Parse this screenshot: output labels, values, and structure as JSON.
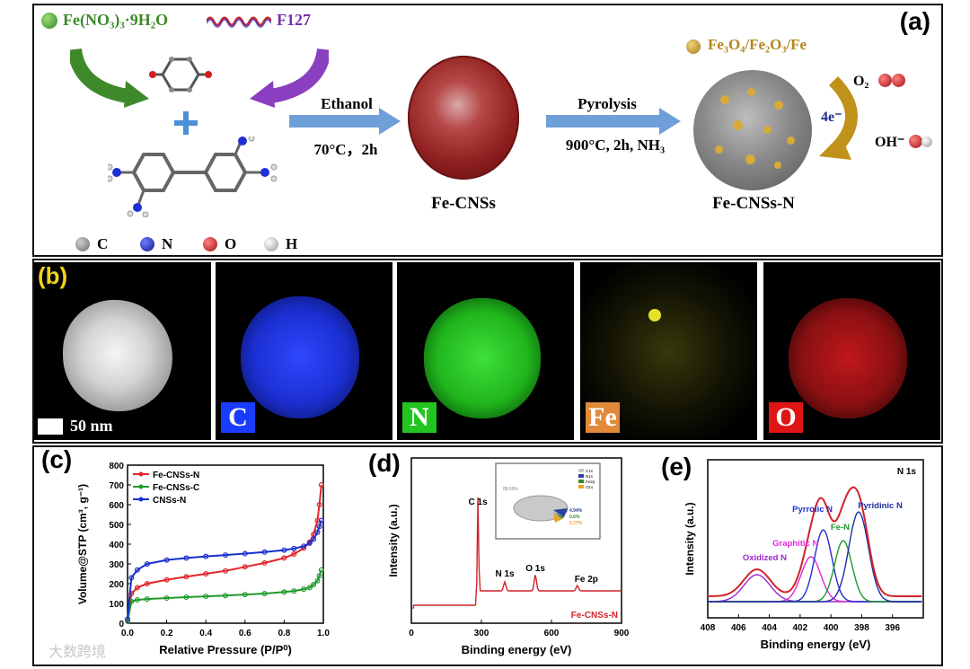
{
  "panel_a": {
    "label": "(a)",
    "reagent_fe": "Fe(NO₃)₃·9H₂O",
    "reagent_polymer": "F127",
    "step1_top": "Ethanol",
    "step1_bottom": "70°C，2h",
    "product1": "Fe-CNSs",
    "step2_top": "Pyrolysis",
    "step2_bottom": "900°C, 2h, NH₃",
    "product2": "Fe-CNSs-N",
    "particles_legend": "Fe₃O₄/Fe₂O₃/Fe",
    "reaction_in": "O₂",
    "reaction_e": "4e⁻",
    "reaction_out": "OH⁻",
    "atoms": [
      "C",
      "N",
      "O",
      "H"
    ],
    "colors": {
      "C": "#8a8a8a",
      "N": "#1f2fd6",
      "O": "#d11c1c",
      "H": "#e6e6e6",
      "sphere": "#9b2424",
      "arrow": "#6f9fd8"
    }
  },
  "panel_b": {
    "label": "(b)",
    "scale": "50 nm",
    "maps": [
      {
        "tag": "C",
        "color": "#1a3cff"
      },
      {
        "tag": "N",
        "color": "#22c41f"
      },
      {
        "tag": "Fe",
        "color": "#d5d21c"
      },
      {
        "tag": "O",
        "color": "#e01414"
      }
    ]
  },
  "panel_c": {
    "label": "(c)",
    "chart_data": {
      "type": "line",
      "xlabel": "Relative Pressure (P/P⁰)",
      "ylabel": "Volume@STP (cm³, g⁻¹)",
      "xlim": [
        0,
        1.0
      ],
      "ylim": [
        0,
        800
      ],
      "xticks": [
        "0.0",
        "0.2",
        "0.4",
        "0.6",
        "0.8",
        "1.0"
      ],
      "yticks": [
        "0",
        "100",
        "200",
        "300",
        "400",
        "500",
        "600",
        "700",
        "800"
      ],
      "x": [
        0.0,
        0.02,
        0.05,
        0.1,
        0.2,
        0.3,
        0.4,
        0.5,
        0.6,
        0.7,
        0.8,
        0.85,
        0.9,
        0.93,
        0.95,
        0.97,
        0.98,
        0.99
      ],
      "series": [
        {
          "name": "Fe-CNSs-N",
          "color": "#e0262a",
          "values": [
            20,
            150,
            180,
            200,
            220,
            235,
            250,
            265,
            285,
            305,
            330,
            350,
            380,
            410,
            450,
            520,
            600,
            700
          ]
        },
        {
          "name": "Fe-CNSs-C",
          "color": "#1f9a2a",
          "values": [
            10,
            110,
            118,
            122,
            127,
            132,
            136,
            140,
            145,
            150,
            158,
            163,
            172,
            180,
            195,
            215,
            240,
            270
          ]
        },
        {
          "name": "CNSs-N",
          "color": "#1a2fd0",
          "values": [
            20,
            230,
            270,
            300,
            320,
            330,
            338,
            345,
            352,
            360,
            370,
            378,
            390,
            405,
            425,
            460,
            490,
            520
          ]
        }
      ]
    }
  },
  "panel_d": {
    "label": "(d)",
    "chart_data": {
      "type": "line",
      "xlabel": "Binding energy (eV)",
      "ylabel": "Intensity (a.u.)",
      "xlim": [
        0,
        900
      ],
      "xticks": [
        "0",
        "300",
        "600",
        "900"
      ],
      "peaks": [
        {
          "name": "C 1s",
          "x": 285
        },
        {
          "name": "N 1s",
          "x": 400
        },
        {
          "name": "O 1s",
          "x": 531
        },
        {
          "name": "Fe 2p",
          "x": 711
        }
      ],
      "series_name": "Fe-CNSs-N",
      "inset_pie": {
        "legend": [
          "C1s",
          "N1s",
          "Fe2p",
          "O1s"
        ],
        "values_label": [
          "88.69%",
          "4.94%",
          "0.6%",
          "5.77%"
        ],
        "colors": [
          "#c9c9c9",
          "#2c3fa0",
          "#3a8a2a",
          "#f0a020"
        ]
      }
    }
  },
  "panel_e": {
    "label": "(e)",
    "chart_data": {
      "type": "line",
      "title": "N 1s",
      "xlabel": "Binding energy (eV)",
      "ylabel": "Intensity (a.u.)",
      "xlim": [
        408,
        394
      ],
      "xticks": [
        "408",
        "406",
        "404",
        "402",
        "400",
        "398",
        "396"
      ],
      "components": [
        {
          "name": "Oxidized N",
          "center": 404.8,
          "color": "#9a2ad0"
        },
        {
          "name": "Graphitic N",
          "center": 401.3,
          "color": "#e02ad8"
        },
        {
          "name": "Pyrrolic N",
          "center": 400.5,
          "color": "#1f2fd0"
        },
        {
          "name": "Fe-N",
          "center": 399.2,
          "color": "#1f9a2a"
        },
        {
          "name": "Pyridinic N",
          "center": 398.2,
          "color": "#1f2fa0"
        }
      ],
      "envelope_color": "#d0242a"
    }
  },
  "watermark": "大数跨境"
}
